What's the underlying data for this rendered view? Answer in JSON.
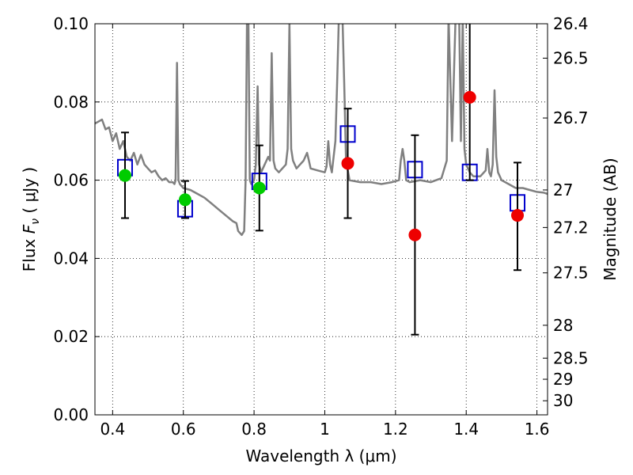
{
  "chart_data": {
    "type": "scatter",
    "title": "",
    "xlabel": "Wavelength  λ (μm)",
    "ylabel": "Flux  F_ν  ( μJy )",
    "ylabel_parts": {
      "prefix": "Flux  ",
      "symbol": "F",
      "subscript": "ν",
      "suffix": "  ( μJy )"
    },
    "y2label": "Magnitude (AB)",
    "xlim": [
      0.35,
      1.63
    ],
    "ylim": [
      0.0,
      0.1
    ],
    "grid": true,
    "xticks": [
      0.4,
      0.6,
      0.8,
      1.0,
      1.2,
      1.4,
      1.6
    ],
    "xtick_labels": [
      "0.4",
      "0.6",
      "0.8",
      "1",
      "1.2",
      "1.4",
      "1.6"
    ],
    "yticks": [
      0.0,
      0.02,
      0.04,
      0.06,
      0.08,
      0.1
    ],
    "ytick_labels": [
      "0.00",
      "0.02",
      "0.04",
      "0.06",
      "0.08",
      "0.10"
    ],
    "y2ticks": [
      {
        "label": "26.4",
        "flux": 0.1
      },
      {
        "label": "26.5",
        "flux": 0.0912
      },
      {
        "label": "26.7",
        "flux": 0.0759
      },
      {
        "label": "27",
        "flux": 0.0575
      },
      {
        "label": "27.2",
        "flux": 0.0479
      },
      {
        "label": "27.5",
        "flux": 0.0363
      },
      {
        "label": "28",
        "flux": 0.0229
      },
      {
        "label": "28.5",
        "flux": 0.0145
      },
      {
        "label": "29",
        "flux": 0.0091
      },
      {
        "label": "30",
        "flux": 0.0036
      }
    ],
    "series": [
      {
        "kind": "line",
        "color": "#808080",
        "points": [
          [
            0.35,
            0.0745
          ],
          [
            0.37,
            0.0755
          ],
          [
            0.38,
            0.073
          ],
          [
            0.39,
            0.0735
          ],
          [
            0.4,
            0.07
          ],
          [
            0.41,
            0.072
          ],
          [
            0.42,
            0.068
          ],
          [
            0.43,
            0.07
          ],
          [
            0.44,
            0.066
          ],
          [
            0.45,
            0.065
          ],
          [
            0.46,
            0.067
          ],
          [
            0.47,
            0.064
          ],
          [
            0.48,
            0.0665
          ],
          [
            0.49,
            0.064
          ],
          [
            0.5,
            0.063
          ],
          [
            0.51,
            0.062
          ],
          [
            0.52,
            0.0625
          ],
          [
            0.53,
            0.061
          ],
          [
            0.54,
            0.06
          ],
          [
            0.55,
            0.0605
          ],
          [
            0.56,
            0.0595
          ],
          [
            0.57,
            0.0595
          ],
          [
            0.575,
            0.059
          ],
          [
            0.578,
            0.06
          ],
          [
            0.582,
            0.09
          ],
          [
            0.586,
            0.06
          ],
          [
            0.59,
            0.059
          ],
          [
            0.6,
            0.058
          ],
          [
            0.62,
            0.0575
          ],
          [
            0.64,
            0.0565
          ],
          [
            0.66,
            0.0555
          ],
          [
            0.68,
            0.054
          ],
          [
            0.7,
            0.0525
          ],
          [
            0.72,
            0.051
          ],
          [
            0.74,
            0.0495
          ],
          [
            0.75,
            0.049
          ],
          [
            0.755,
            0.047
          ],
          [
            0.765,
            0.046
          ],
          [
            0.772,
            0.047
          ],
          [
            0.776,
            0.06
          ],
          [
            0.78,
            0.102
          ],
          [
            0.784,
            0.102
          ],
          [
            0.788,
            0.06
          ],
          [
            0.792,
            0.059
          ],
          [
            0.8,
            0.06
          ],
          [
            0.805,
            0.064
          ],
          [
            0.81,
            0.084
          ],
          [
            0.814,
            0.064
          ],
          [
            0.82,
            0.062
          ],
          [
            0.83,
            0.064
          ],
          [
            0.84,
            0.066
          ],
          [
            0.845,
            0.065
          ],
          [
            0.85,
            0.0925
          ],
          [
            0.855,
            0.065
          ],
          [
            0.86,
            0.063
          ],
          [
            0.87,
            0.062
          ],
          [
            0.88,
            0.063
          ],
          [
            0.89,
            0.064
          ],
          [
            0.895,
            0.068
          ],
          [
            0.9,
            0.1
          ],
          [
            0.905,
            0.068
          ],
          [
            0.91,
            0.065
          ],
          [
            0.92,
            0.063
          ],
          [
            0.94,
            0.065
          ],
          [
            0.95,
            0.067
          ],
          [
            0.955,
            0.065
          ],
          [
            0.96,
            0.063
          ],
          [
            0.98,
            0.0625
          ],
          [
            1.0,
            0.062
          ],
          [
            1.005,
            0.0635
          ],
          [
            1.01,
            0.07
          ],
          [
            1.015,
            0.064
          ],
          [
            1.02,
            0.062
          ],
          [
            1.03,
            0.07
          ],
          [
            1.035,
            0.085
          ],
          [
            1.04,
            0.102
          ],
          [
            1.05,
            0.102
          ],
          [
            1.055,
            0.085
          ],
          [
            1.06,
            0.065
          ],
          [
            1.07,
            0.06
          ],
          [
            1.1,
            0.0595
          ],
          [
            1.13,
            0.0595
          ],
          [
            1.16,
            0.059
          ],
          [
            1.19,
            0.0595
          ],
          [
            1.21,
            0.06
          ],
          [
            1.215,
            0.065
          ],
          [
            1.22,
            0.068
          ],
          [
            1.225,
            0.065
          ],
          [
            1.23,
            0.06
          ],
          [
            1.24,
            0.0595
          ],
          [
            1.27,
            0.06
          ],
          [
            1.3,
            0.0595
          ],
          [
            1.33,
            0.0605
          ],
          [
            1.345,
            0.065
          ],
          [
            1.35,
            0.102
          ],
          [
            1.36,
            0.07
          ],
          [
            1.37,
            0.102
          ],
          [
            1.38,
            0.102
          ],
          [
            1.385,
            0.07
          ],
          [
            1.39,
            0.102
          ],
          [
            1.395,
            0.068
          ],
          [
            1.4,
            0.064
          ],
          [
            1.41,
            0.062
          ],
          [
            1.42,
            0.061
          ],
          [
            1.44,
            0.061
          ],
          [
            1.455,
            0.0625
          ],
          [
            1.46,
            0.068
          ],
          [
            1.465,
            0.062
          ],
          [
            1.47,
            0.061
          ],
          [
            1.475,
            0.064
          ],
          [
            1.48,
            0.083
          ],
          [
            1.485,
            0.066
          ],
          [
            1.49,
            0.062
          ],
          [
            1.5,
            0.06
          ],
          [
            1.52,
            0.059
          ],
          [
            1.54,
            0.058
          ],
          [
            1.56,
            0.058
          ],
          [
            1.58,
            0.0575
          ],
          [
            1.6,
            0.057
          ],
          [
            1.62,
            0.0568
          ],
          [
            1.63,
            0.0565
          ]
        ]
      },
      {
        "kind": "squares",
        "color": "#0000cc",
        "points": [
          [
            0.435,
            0.0632
          ],
          [
            0.605,
            0.0527
          ],
          [
            0.815,
            0.0597
          ],
          [
            1.065,
            0.0718
          ],
          [
            1.255,
            0.0627
          ],
          [
            1.41,
            0.062
          ],
          [
            1.545,
            0.0542
          ]
        ]
      },
      {
        "kind": "errorbar-dots",
        "color": "#00cc00",
        "points": [
          {
            "x": 0.435,
            "y": 0.0612,
            "lo": 0.0503,
            "hi": 0.0722
          },
          {
            "x": 0.605,
            "y": 0.055,
            "lo": 0.0503,
            "hi": 0.0598
          },
          {
            "x": 0.815,
            "y": 0.058,
            "lo": 0.0471,
            "hi": 0.0689
          }
        ]
      },
      {
        "kind": "errorbar-dots",
        "color": "#ee0000",
        "points": [
          {
            "x": 1.065,
            "y": 0.0643,
            "lo": 0.0503,
            "hi": 0.0783
          },
          {
            "x": 1.255,
            "y": 0.046,
            "lo": 0.0205,
            "hi": 0.0715
          },
          {
            "x": 1.41,
            "y": 0.0812,
            "lo": 0.06,
            "hi": 0.105
          },
          {
            "x": 1.545,
            "y": 0.051,
            "lo": 0.037,
            "hi": 0.0645
          }
        ]
      }
    ]
  }
}
